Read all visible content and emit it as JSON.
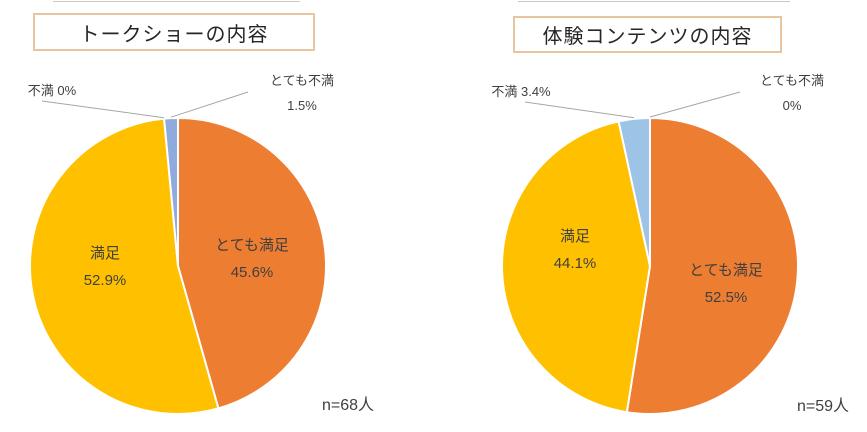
{
  "charts": [
    {
      "title": "トークショーの内容",
      "n_label": "n=68人",
      "inner_labels": [
        {
          "name": "とても満足",
          "value": "45.6%"
        },
        {
          "name": "満足",
          "value": "52.9%"
        }
      ],
      "outer_labels": [
        {
          "text": "不満 0%"
        },
        {
          "line1": "とても不満",
          "line2": "1.5%"
        }
      ]
    },
    {
      "title": "体験コンテンツの内容",
      "n_label": "n=59人",
      "inner_labels": [
        {
          "name": "満足",
          "value": "44.1%"
        },
        {
          "name": "とても満足",
          "value": "52.5%"
        }
      ],
      "outer_labels": [
        {
          "text": "不満 3.4%"
        },
        {
          "line1": "とても不満",
          "line2": "0%"
        }
      ]
    }
  ],
  "chart_data": [
    {
      "type": "pie",
      "title": "トークショーの内容",
      "categories": [
        "とても満足",
        "満足",
        "不満",
        "とても不満"
      ],
      "values": [
        45.6,
        52.9,
        0,
        1.5
      ],
      "colors": [
        "#ED7D31",
        "#FFC000",
        "#9DC3E6",
        "#8FAADC"
      ],
      "label_color": "#404040",
      "leader_line_color": "#A6A6A6",
      "start_angle_deg": 0,
      "direction": "clockwise",
      "sample_size_label": "n=68人"
    },
    {
      "type": "pie",
      "title": "体験コンテンツの内容",
      "categories": [
        "とても満足",
        "満足",
        "不満",
        "とても不満"
      ],
      "values": [
        52.5,
        44.1,
        3.4,
        0
      ],
      "colors": [
        "#ED7D31",
        "#FFC000",
        "#9DC3E6",
        "#8FAADC"
      ],
      "label_color": "#404040",
      "leader_line_color": "#A6A6A6",
      "start_angle_deg": 0,
      "direction": "clockwise",
      "sample_size_label": "n=59人"
    }
  ]
}
